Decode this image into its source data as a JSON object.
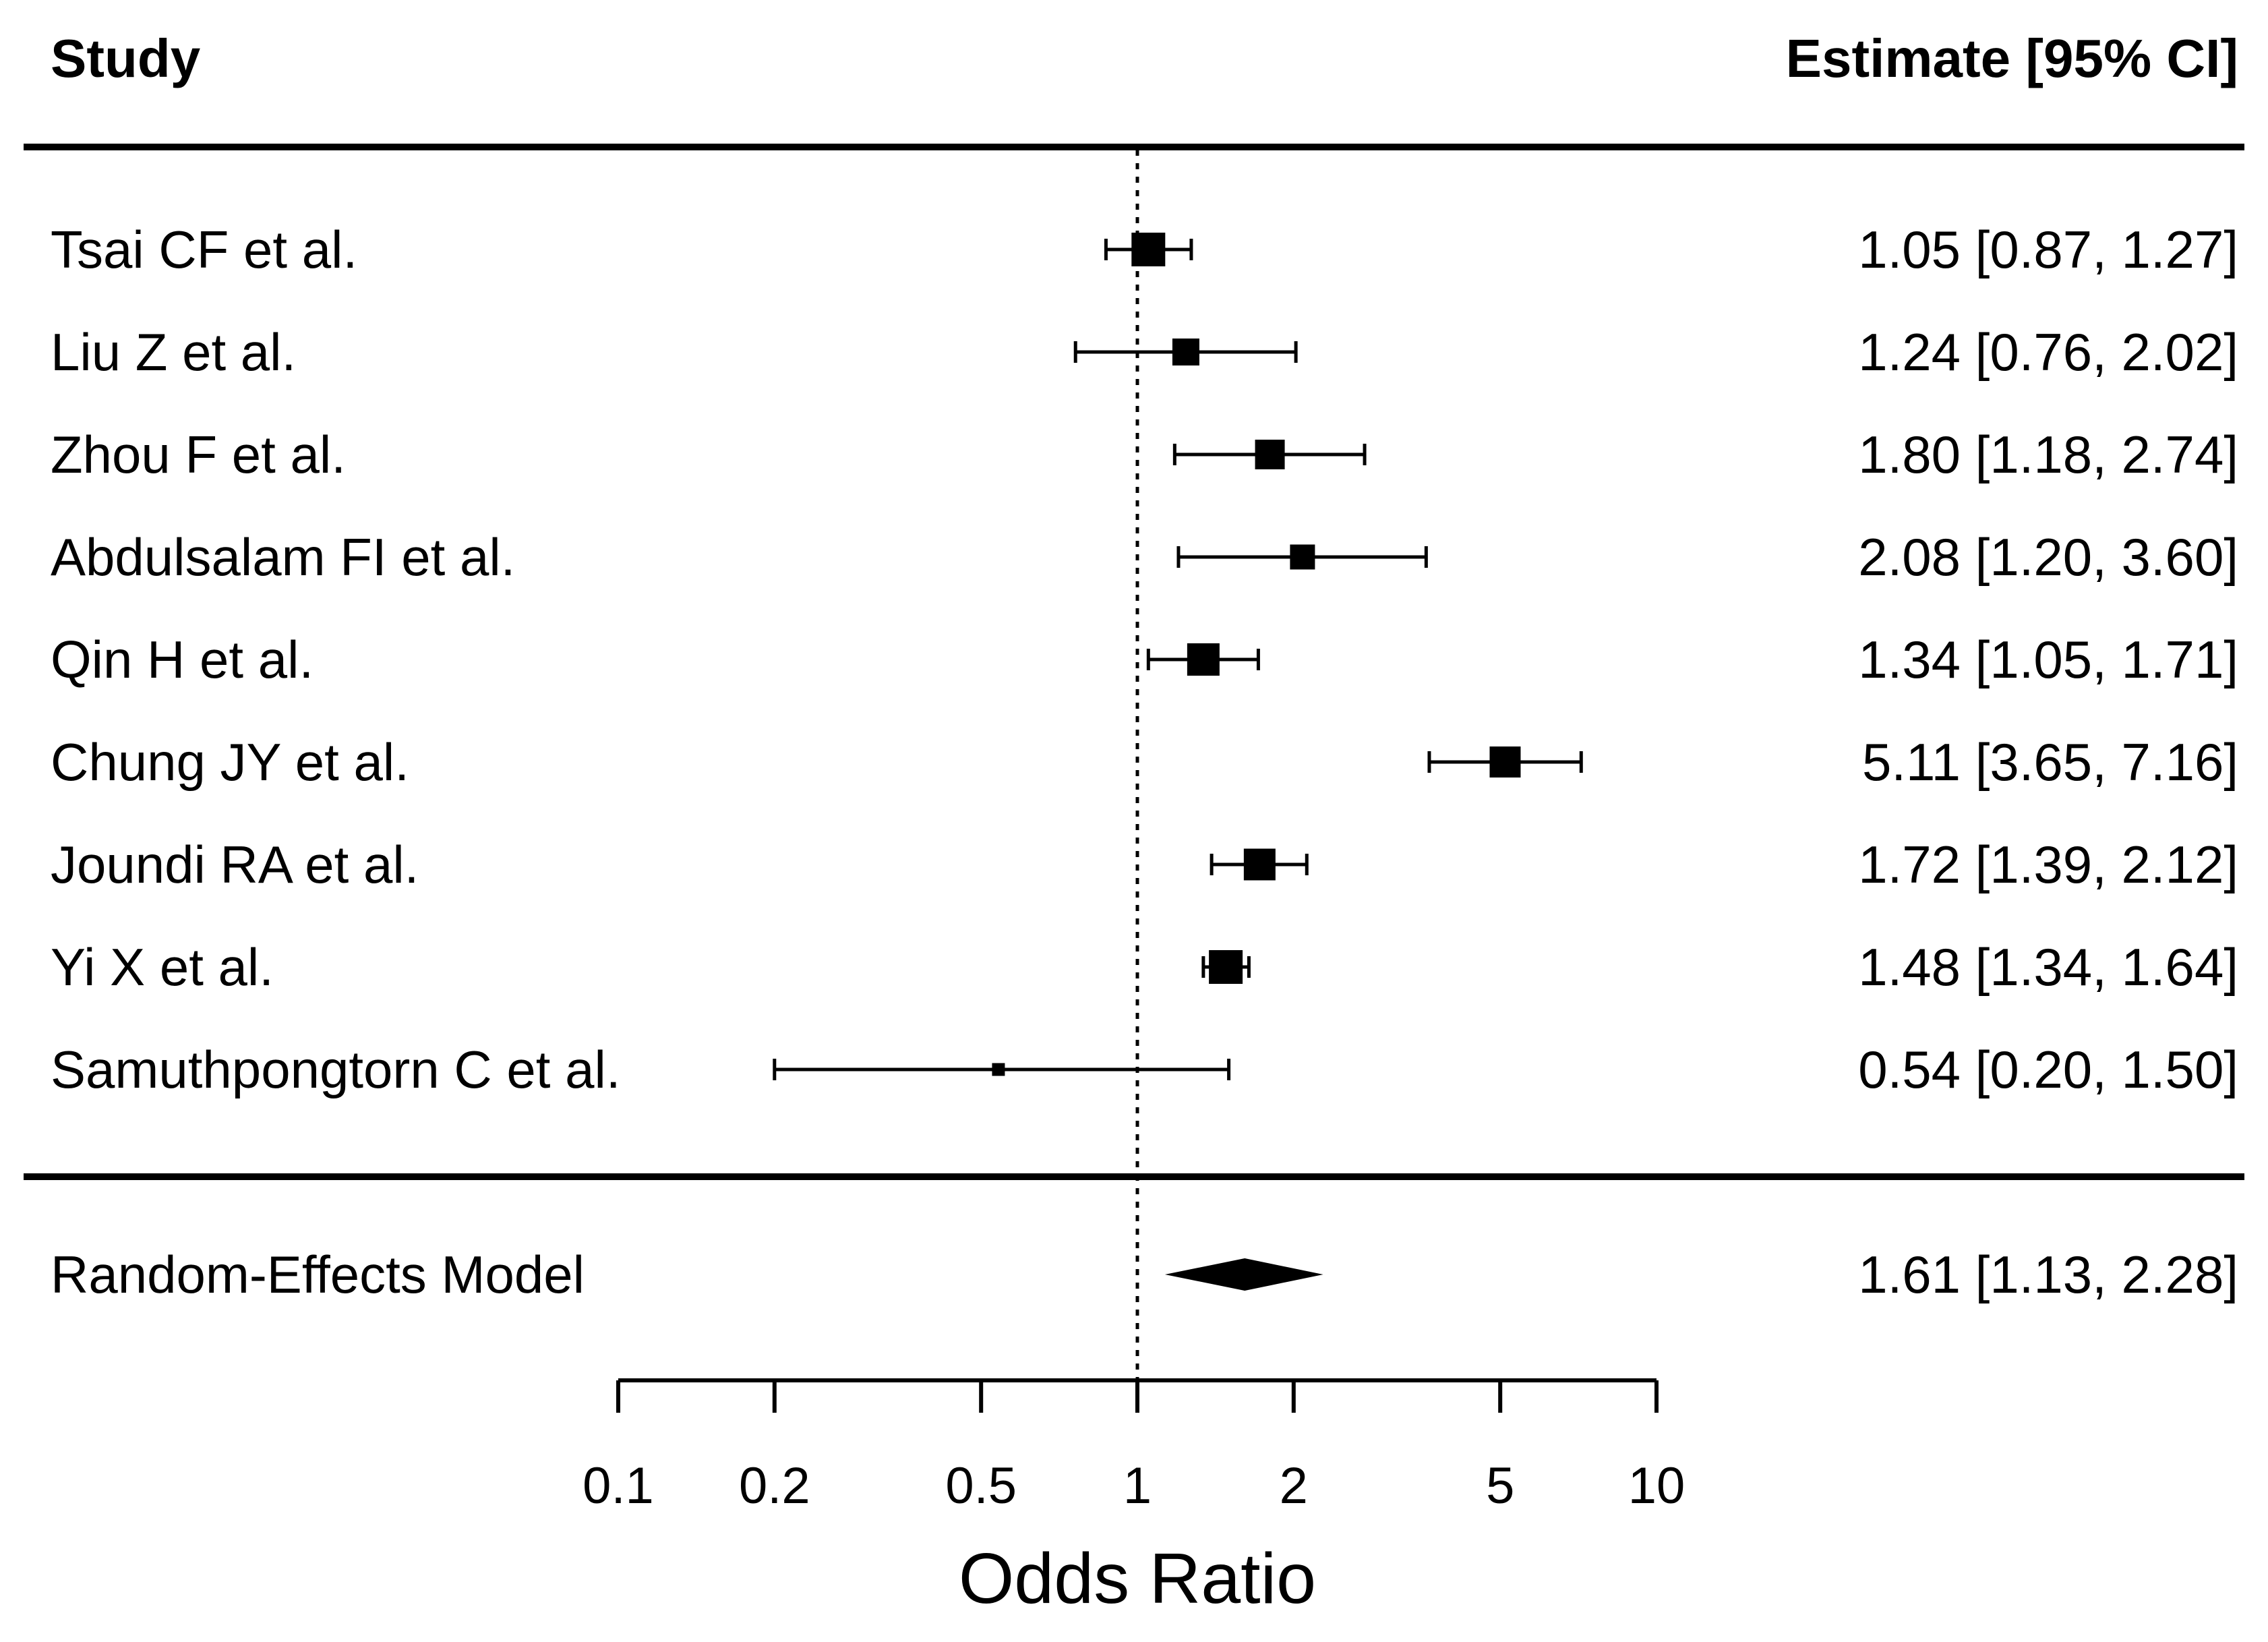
{
  "colors": {
    "foreground": "#000000",
    "background": "#ffffff"
  },
  "chart_data": {
    "type": "forest",
    "study_column_header": "Study",
    "estimate_column_header": "Estimate [95% CI]",
    "xlabel": "Odds Ratio",
    "x_scale": "log",
    "xlim": [
      0.1,
      10
    ],
    "reference_value": 1,
    "x_tick_values": [
      0.1,
      0.2,
      0.5,
      1,
      2,
      5,
      10
    ],
    "x_tick_labels": [
      "0.1",
      "0.2",
      "0.5",
      "1",
      "2",
      "5",
      "10"
    ],
    "studies": [
      {
        "label": "Tsai CF et al.",
        "estimate": 1.05,
        "ci_low": 0.87,
        "ci_high": 1.27,
        "square_size": 50
      },
      {
        "label": "Liu Z et al.",
        "estimate": 1.24,
        "ci_low": 0.76,
        "ci_high": 2.02,
        "square_size": 40
      },
      {
        "label": "Zhou F et al.",
        "estimate": 1.8,
        "ci_low": 1.18,
        "ci_high": 2.74,
        "square_size": 44
      },
      {
        "label": "Abdulsalam FI et al.",
        "estimate": 2.08,
        "ci_low": 1.2,
        "ci_high": 3.6,
        "square_size": 37
      },
      {
        "label": "Qin H et al.",
        "estimate": 1.34,
        "ci_low": 1.05,
        "ci_high": 1.71,
        "square_size": 48
      },
      {
        "label": "Chung JY et al.",
        "estimate": 5.11,
        "ci_low": 3.65,
        "ci_high": 7.16,
        "square_size": 46
      },
      {
        "label": "Joundi RA et al.",
        "estimate": 1.72,
        "ci_low": 1.39,
        "ci_high": 2.12,
        "square_size": 47
      },
      {
        "label": "Yi X et al.",
        "estimate": 1.48,
        "ci_low": 1.34,
        "ci_high": 1.64,
        "square_size": 50
      },
      {
        "label": "Samuthpongtorn C et al.",
        "estimate": 0.54,
        "ci_low": 0.2,
        "ci_high": 1.5,
        "square_size": 19
      }
    ],
    "model": {
      "label": "Random-Effects Model",
      "estimate": 1.61,
      "ci_low": 1.13,
      "ci_high": 2.28
    }
  }
}
